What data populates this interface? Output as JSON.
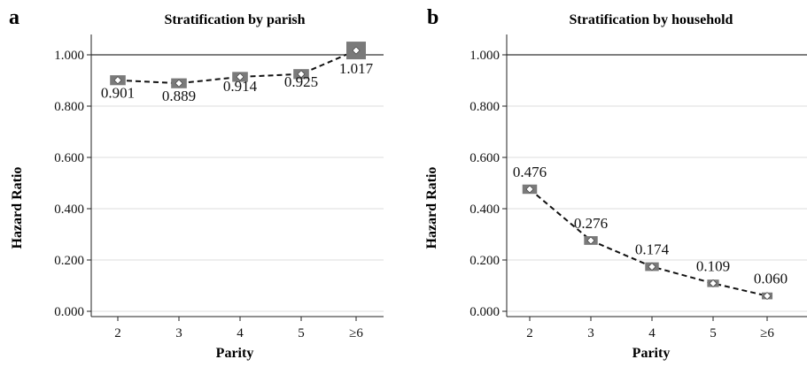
{
  "chart_data": [
    {
      "type": "line",
      "panel_label": "a",
      "title": "Stratification by parish",
      "xlabel": "Parity",
      "ylabel": "Hazard Ratio",
      "categories": [
        "2",
        "3",
        "4",
        "5",
        "≥6"
      ],
      "values": [
        0.901,
        0.889,
        0.914,
        0.925,
        1.017
      ],
      "data_labels": [
        "0.901",
        "0.889",
        "0.914",
        "0.925",
        "1.017"
      ],
      "yticks": [
        "0.000",
        "0.200",
        "0.400",
        "0.600",
        "0.800",
        "1.000"
      ],
      "ylim": [
        0,
        1.08
      ],
      "reference_line": 1.0,
      "marker_weights": [
        0.8,
        0.8,
        0.8,
        0.8,
        1.0
      ],
      "grid": true
    },
    {
      "type": "line",
      "panel_label": "b",
      "title": "Stratification by household",
      "xlabel": "Parity",
      "ylabel": "Hazard Ratio",
      "categories": [
        "2",
        "3",
        "4",
        "5",
        "≥6"
      ],
      "values": [
        0.476,
        0.276,
        0.174,
        0.109,
        0.06
      ],
      "data_labels": [
        "0.476",
        "0.276",
        "0.174",
        "0.109",
        "0.060"
      ],
      "yticks": [
        "0.000",
        "0.200",
        "0.400",
        "0.600",
        "0.800",
        "1.000"
      ],
      "ylim": [
        0,
        1.08
      ],
      "reference_line": 1.0,
      "marker_weights": [
        0.75,
        0.7,
        0.7,
        0.6,
        0.55
      ],
      "grid": true
    }
  ],
  "colors": {
    "marker": "#7a7a7a",
    "line": "#111111",
    "grid": "#dddddd",
    "reference_line": "#555555",
    "axis": "#222222"
  }
}
